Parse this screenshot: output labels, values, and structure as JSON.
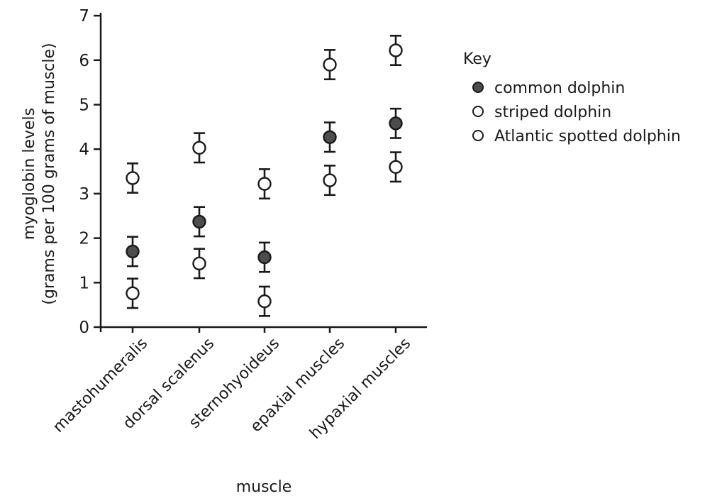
{
  "chart_data": {
    "type": "scatter",
    "title": "",
    "xlabel": "muscle",
    "ylabel_lines": [
      "myoglobin levels",
      "(grams per 100 grams of muscle)"
    ],
    "ylim": [
      0,
      7
    ],
    "yticks": [
      "0",
      "1",
      "2",
      "3",
      "4",
      "5",
      "6",
      "7"
    ],
    "categories": [
      "mastohumeralis",
      "dorsal scalenus",
      "sternohyoideus",
      "epaxial muscles",
      "hypaxial muscles"
    ],
    "error_bars": true,
    "legend": {
      "title": "Key",
      "position": "right",
      "entries": [
        "common dolphin",
        "striped dolphin",
        "Atlantic spotted dolphin"
      ]
    },
    "series": [
      {
        "name": "common dolphin",
        "marker": "filled-circle",
        "color": "#4d4d4d",
        "values": [
          1.7,
          2.37,
          1.57,
          4.27,
          4.58
        ],
        "error": [
          0.33,
          0.33,
          0.33,
          0.33,
          0.33
        ]
      },
      {
        "name": "striped dolphin",
        "marker": "open-circle",
        "color": "#ffffff",
        "values": [
          3.35,
          4.03,
          3.22,
          5.9,
          6.22
        ],
        "error": [
          0.33,
          0.33,
          0.33,
          0.33,
          0.33
        ]
      },
      {
        "name": "Atlantic spotted dolphin",
        "marker": "open-circle",
        "color": "#ffffff",
        "values": [
          0.76,
          1.43,
          0.58,
          3.3,
          3.6
        ],
        "error": [
          0.33,
          0.33,
          0.33,
          0.33,
          0.33
        ]
      }
    ]
  }
}
